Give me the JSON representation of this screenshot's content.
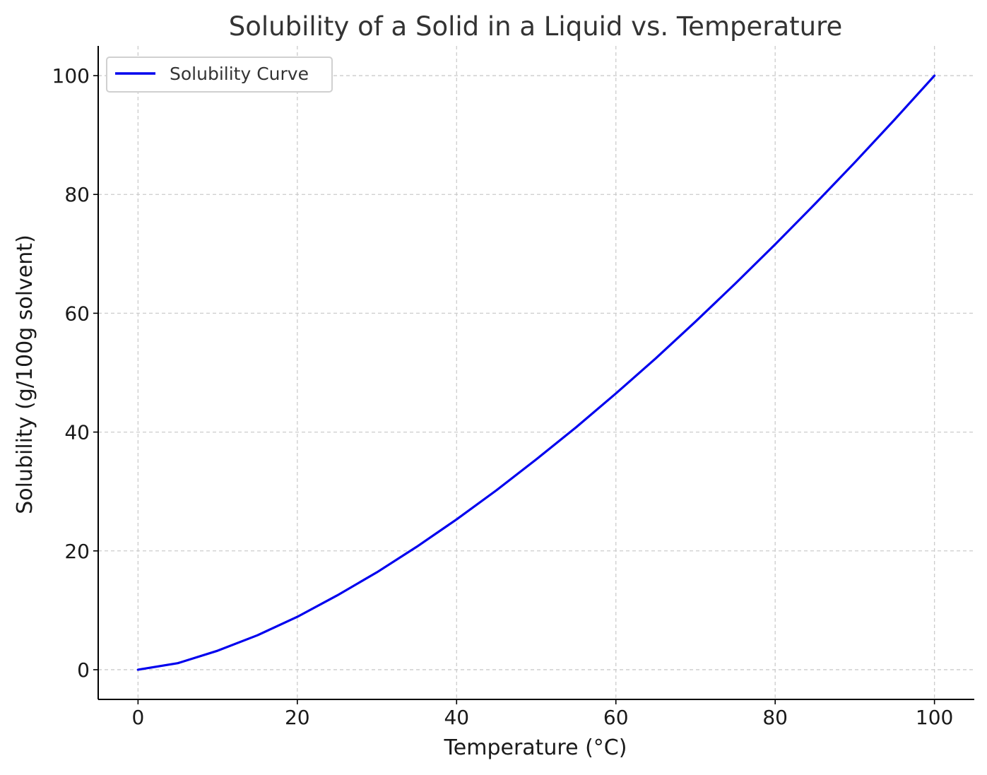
{
  "colors": {
    "series": "#0000ee",
    "grid": "#cccccc",
    "axis": "#000000"
  },
  "chart_data": {
    "type": "line",
    "title": "Solubility of a Solid in a Liquid vs. Temperature",
    "xlabel": "Temperature (°C)",
    "ylabel": "Solubility (g/100g solvent)",
    "xlim": [
      -5,
      105
    ],
    "ylim": [
      -5,
      105
    ],
    "xticks": [
      0,
      20,
      40,
      60,
      80,
      100
    ],
    "yticks": [
      0,
      20,
      40,
      60,
      80,
      100
    ],
    "grid": true,
    "grid_style": "dashed",
    "legend_position": "top-left",
    "series": [
      {
        "name": "Solubility Curve",
        "color": "#0000ee",
        "x": [
          0,
          5,
          10,
          15,
          20,
          25,
          30,
          35,
          40,
          45,
          50,
          55,
          60,
          65,
          70,
          75,
          80,
          85,
          90,
          95,
          100
        ],
        "y": [
          0,
          1.1,
          3.2,
          5.8,
          8.9,
          12.5,
          16.4,
          20.7,
          25.3,
          30.2,
          35.4,
          40.8,
          46.5,
          52.4,
          58.6,
          65.0,
          71.6,
          78.4,
          85.4,
          92.6,
          100
        ]
      }
    ]
  }
}
